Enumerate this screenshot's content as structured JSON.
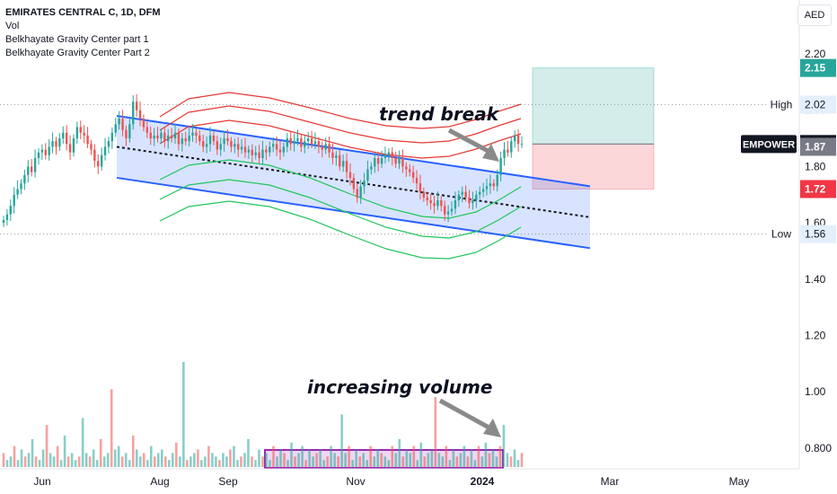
{
  "legend": {
    "title": "EMIRATES CENTRAL C, 1D, DFM",
    "line2": "Vol",
    "line3": "Belkhayate Gravity Center part 1",
    "line4": "Belkhayate Gravity Center Part 2"
  },
  "currency": "AED",
  "chart_data": {
    "type": "candlestick",
    "y_ticks": [
      "2.20",
      "2.00",
      "1.80",
      "1.60",
      "1.40",
      "1.20",
      "1.00",
      "0.800"
    ],
    "x_ticks": [
      "Jun",
      "Aug",
      "Sep",
      "Nov",
      "2024",
      "Mar",
      "May"
    ],
    "ylim": [
      0.75,
      2.3
    ],
    "price_labels": [
      {
        "text": "2.15",
        "value": 2.15,
        "color": "#26a69a"
      },
      {
        "text": "High",
        "value": "2.02",
        "color": "#e3effd",
        "kind": "high"
      },
      {
        "text": "EMPOWER",
        "value": "1.88",
        "color": "#131722",
        "kind": "symbol"
      },
      {
        "text": "1.87",
        "value": 1.87,
        "color": "#787b86"
      },
      {
        "text": "1.72",
        "value": 1.72,
        "color": "#f23645"
      },
      {
        "text": "Low",
        "value": "1.56",
        "color": "#e3effd",
        "kind": "low"
      }
    ],
    "high_line": 2.02,
    "low_line": 1.56,
    "channel": {
      "upper": [
        [
          1.98,
          "Jul 10"
        ],
        [
          1.73,
          "Jan 30"
        ]
      ],
      "lower": [
        [
          1.76,
          "Jul 10"
        ],
        [
          1.51,
          "Jan 30"
        ]
      ],
      "mid_dashed": [
        [
          1.87,
          "Jul 10"
        ],
        [
          1.62,
          "Jan 30"
        ]
      ]
    },
    "position": {
      "entry": 1.88,
      "target": 2.15,
      "stop": 1.72
    },
    "colors": {
      "up": "#26a69a",
      "down": "#ef5350",
      "channel": "#2962ff",
      "fill": "#cfdcfb",
      "red_band": "#e53935",
      "green_band": "#22c55e",
      "vol_box": "#9c27b0"
    }
  },
  "annotations": {
    "trend_break": "trend break",
    "increasing_volume": "increasing volume"
  }
}
